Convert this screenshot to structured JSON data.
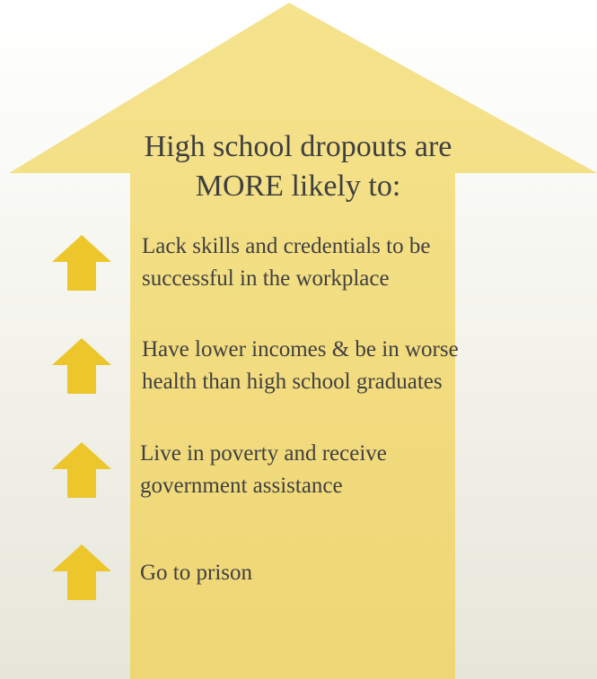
{
  "title": {
    "line1": "High school dropouts are",
    "line2": "MORE likely to:"
  },
  "items": [
    {
      "line1": "Lack skills and credentials to be",
      "line2": "successful in the workplace",
      "icon": "up-arrow-icon"
    },
    {
      "line1": "Have lower incomes & be in worse",
      "line2": "health than high school graduates",
      "icon": "up-arrow-icon"
    },
    {
      "line1": "Live in poverty and receive",
      "line2": "government assistance",
      "icon": "up-arrow-icon"
    },
    {
      "line1": "Go to prison",
      "line2": "",
      "icon": "up-arrow-icon"
    }
  ],
  "colors": {
    "big_arrow_top": "#f3e08a",
    "big_arrow_bottom": "#efd773",
    "small_arrow": "#ecc62a",
    "text": "#404040",
    "background_top": "#ffffff",
    "background_bottom": "#e6e6da"
  }
}
